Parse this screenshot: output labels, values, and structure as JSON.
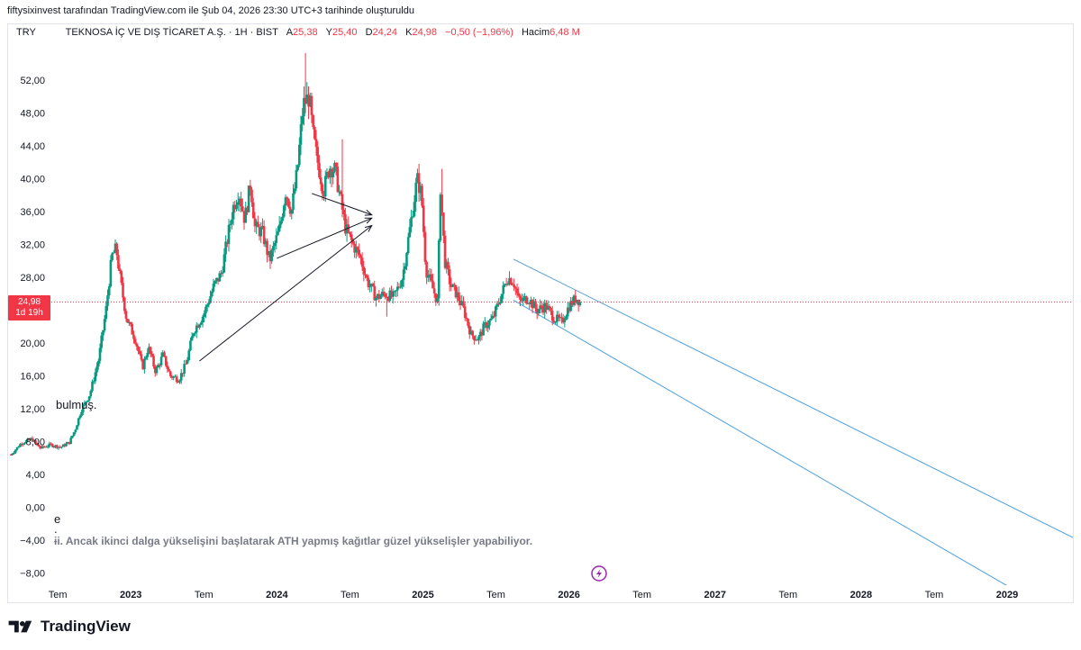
{
  "header": {
    "attribution": "fiftysixinvest tarafından TradingView.com ile Şub 04, 2026 23:30 UTC+3 tarihinde oluşturuldu"
  },
  "legend": {
    "currency": "TRY",
    "title": "TEKNOSA İÇ VE DIŞ TİCARET A.Ş. · 1H · BIST",
    "open_label": "A",
    "open": "25,38",
    "high_label": "Y",
    "high": "25,40",
    "low_label": "D",
    "low": "24,24",
    "close_label": "K",
    "close": "24,98",
    "change": "−0,50 (−1,96%)",
    "volume_label": "Hacim",
    "volume": "6,48 M"
  },
  "price_tag": {
    "value": "24,98",
    "countdown": "1d 19h"
  },
  "annotations": {
    "note_left": "bulmuş.",
    "note_e": "e",
    "note_dot": ".",
    "note_bottom": "ɨi. Ancak ikinci dalga yükselişini başlatarak ATH yapmış kağıtlar güzel yükselişler yapabiliyor."
  },
  "brand": {
    "name": "TradingView"
  },
  "colors": {
    "up": "#089981",
    "down": "#f23645",
    "channel": "#4a9fe0",
    "arrow": "#131722",
    "price_line": "#f23645",
    "event_icon": "#9c27b0"
  },
  "chart_data": {
    "type": "candlestick",
    "symbol": "TEKNOSA İÇ VE DIŞ TİCARET A.Ş.",
    "interval": "1H",
    "exchange": "BIST",
    "currency": "TRY",
    "last_price": 24.98,
    "y_ticks": [
      "52,00",
      "48,00",
      "44,00",
      "40,00",
      "36,00",
      "32,00",
      "28,00",
      "24,00",
      "20,00",
      "16,00",
      "12,00",
      "8,00",
      "4,00",
      "0,00",
      "−4,00",
      "−8,00"
    ],
    "y_tick_values": [
      52,
      48,
      44,
      40,
      36,
      32,
      28,
      24,
      20,
      16,
      12,
      8,
      4,
      0,
      -4,
      -8
    ],
    "ylim": [
      -9.5,
      56.5
    ],
    "x_ticks": [
      "Tem",
      "2023",
      "Tem",
      "2024",
      "Tem",
      "2025",
      "Tem",
      "2026",
      "Tem",
      "2027",
      "Tem",
      "2028",
      "Tem",
      "2029"
    ],
    "x_tick_values": [
      2022.5,
      2023.0,
      2023.5,
      2024.0,
      2024.5,
      2025.0,
      2025.5,
      2026.0,
      2026.5,
      2027.0,
      2027.5,
      2028.0,
      2028.5,
      2029.0
    ],
    "x_tick_bold": [
      false,
      true,
      false,
      true,
      false,
      true,
      false,
      true,
      false,
      true,
      false,
      true,
      false,
      true
    ],
    "xlim": [
      2022.16,
      2029.45
    ],
    "price_path": [
      [
        2022.18,
        6.4
      ],
      [
        2022.25,
        7.8
      ],
      [
        2022.32,
        8.3
      ],
      [
        2022.38,
        7.2
      ],
      [
        2022.45,
        7.6
      ],
      [
        2022.52,
        7.3
      ],
      [
        2022.58,
        7.9
      ],
      [
        2022.62,
        9.5
      ],
      [
        2022.66,
        11.8
      ],
      [
        2022.72,
        13.8
      ],
      [
        2022.78,
        18.0
      ],
      [
        2022.83,
        24.0
      ],
      [
        2022.87,
        30.5
      ],
      [
        2022.9,
        31.5
      ],
      [
        2022.93,
        27.5
      ],
      [
        2022.97,
        23.0
      ],
      [
        2023.03,
        20.5
      ],
      [
        2023.08,
        17.0
      ],
      [
        2023.12,
        19.5
      ],
      [
        2023.17,
        16.5
      ],
      [
        2023.22,
        18.5
      ],
      [
        2023.27,
        16.0
      ],
      [
        2023.33,
        15.6
      ],
      [
        2023.38,
        17.5
      ],
      [
        2023.43,
        21.5
      ],
      [
        2023.5,
        23.5
      ],
      [
        2023.57,
        27.0
      ],
      [
        2023.62,
        28.5
      ],
      [
        2023.66,
        32.5
      ],
      [
        2023.7,
        36.5
      ],
      [
        2023.74,
        38.5
      ],
      [
        2023.78,
        35.0
      ],
      [
        2023.82,
        39.5
      ],
      [
        2023.85,
        34.0
      ],
      [
        2023.9,
        33.5
      ],
      [
        2023.95,
        30.0
      ],
      [
        2024.02,
        34.0
      ],
      [
        2024.06,
        38.5
      ],
      [
        2024.1,
        36.0
      ],
      [
        2024.14,
        41.0
      ],
      [
        2024.18,
        49.0
      ],
      [
        2024.22,
        50.0
      ],
      [
        2024.25,
        45.0
      ],
      [
        2024.28,
        42.0
      ],
      [
        2024.32,
        38.5
      ],
      [
        2024.36,
        41.5
      ],
      [
        2024.4,
        41.0
      ],
      [
        2024.44,
        37.0
      ],
      [
        2024.47,
        34.0
      ],
      [
        2024.52,
        32.0
      ],
      [
        2024.57,
        30.5
      ],
      [
        2024.62,
        27.5
      ],
      [
        2024.68,
        25.5
      ],
      [
        2024.74,
        26.0
      ],
      [
        2024.8,
        25.5
      ],
      [
        2024.86,
        28.0
      ],
      [
        2024.92,
        35.0
      ],
      [
        2024.96,
        40.0
      ],
      [
        2024.99,
        38.0
      ],
      [
        2025.02,
        29.0
      ],
      [
        2025.06,
        27.0
      ],
      [
        2025.1,
        25.0
      ],
      [
        2025.12,
        39.0
      ],
      [
        2025.15,
        30.0
      ],
      [
        2025.19,
        27.0
      ],
      [
        2025.23,
        26.0
      ],
      [
        2025.28,
        24.0
      ],
      [
        2025.33,
        21.0
      ],
      [
        2025.38,
        20.5
      ],
      [
        2025.42,
        22.0
      ],
      [
        2025.48,
        23.0
      ],
      [
        2025.53,
        25.5
      ],
      [
        2025.58,
        28.0
      ],
      [
        2025.62,
        27.5
      ],
      [
        2025.66,
        25.0
      ],
      [
        2025.72,
        25.5
      ],
      [
        2025.78,
        24.0
      ],
      [
        2025.84,
        24.5
      ],
      [
        2025.9,
        23.0
      ],
      [
        2025.95,
        22.5
      ],
      [
        2026.0,
        24.5
      ],
      [
        2026.05,
        25.5
      ],
      [
        2026.08,
        24.98
      ]
    ],
    "spikes": [
      {
        "x": 2024.2,
        "high": 55.3
      },
      {
        "x": 2024.45,
        "high": 44.8
      },
      {
        "x": 2025.13,
        "high": 41.2
      },
      {
        "x": 2024.75,
        "low": 23.2
      }
    ],
    "channel_lines": [
      {
        "name": "upper",
        "from": [
          2025.62,
          30.2
        ],
        "to": [
          2029.45,
          -3.7
        ]
      },
      {
        "name": "lower",
        "from": [
          2025.62,
          25.2
        ],
        "to": [
          2029.45,
          -14.2
        ]
      }
    ],
    "arrows": [
      {
        "from": [
          2023.47,
          17.8
        ],
        "to": [
          2024.65,
          34.3
        ]
      },
      {
        "from": [
          2024.0,
          30.3
        ],
        "to": [
          2024.65,
          35.2
        ]
      },
      {
        "from": [
          2024.24,
          38.2
        ],
        "to": [
          2024.65,
          35.6
        ]
      }
    ],
    "grid": false
  }
}
